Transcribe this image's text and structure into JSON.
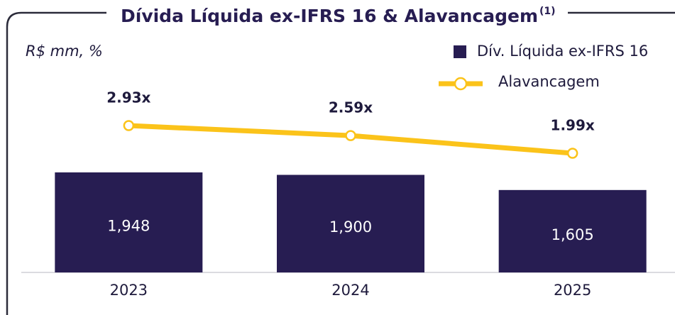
{
  "chart_data": {
    "type": "combo",
    "title": "Dívida Líquida ex-IFRS 16 & Alavancagem",
    "title_note": "(1)",
    "subtitle": "R$ mm, %",
    "categories": [
      "2023",
      "2024",
      "2025"
    ],
    "legend": "top-right",
    "series": [
      {
        "name": "Dív. Líquida ex-IFRS 16",
        "type": "bar",
        "color": "#271d52",
        "values": [
          1948,
          1900,
          1605
        ],
        "value_labels": [
          "1,948",
          "1,900",
          "1,605"
        ]
      },
      {
        "name": "Alavancagem",
        "type": "line",
        "color": "#fbc31a",
        "values": [
          2.93,
          2.59,
          1.99
        ],
        "value_labels": [
          "2.93x",
          "2.59x",
          "1.99x"
        ]
      }
    ]
  }
}
